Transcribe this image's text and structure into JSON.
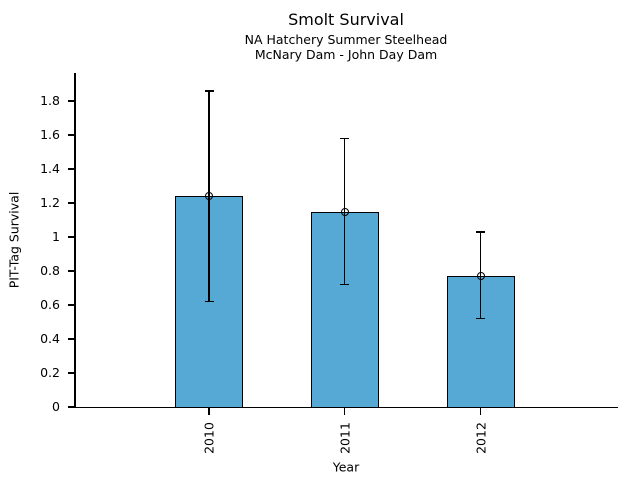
{
  "chart_data": {
    "type": "bar",
    "title": "Smolt Survival",
    "subtitle1": "NA Hatchery Summer Steelhead",
    "subtitle2": "McNary Dam - John Day Dam",
    "xlabel": "Year",
    "ylabel": "PIT-Tag Survival",
    "categories": [
      "2010",
      "2011",
      "2012"
    ],
    "values": [
      1.24,
      1.15,
      0.77
    ],
    "error_low": [
      0.62,
      0.72,
      0.52
    ],
    "error_high": [
      1.86,
      1.58,
      1.03
    ],
    "yticks": [
      0,
      0.2,
      0.4,
      0.6,
      0.8,
      1,
      1.2,
      1.4,
      1.6,
      1.8
    ],
    "ytick_labels": [
      "0",
      "0.2",
      "0.4",
      "0.6",
      "0.8",
      "1",
      "1.2",
      "1.4",
      "1.6",
      "1.8"
    ],
    "ylim": [
      0,
      1.96
    ],
    "grid": false,
    "legend": "none",
    "marker": "open-circle",
    "bar_color": "#56A8D5",
    "bar_edge_color": "#000000",
    "axis_color": "#000000",
    "text_color": "#000000"
  }
}
